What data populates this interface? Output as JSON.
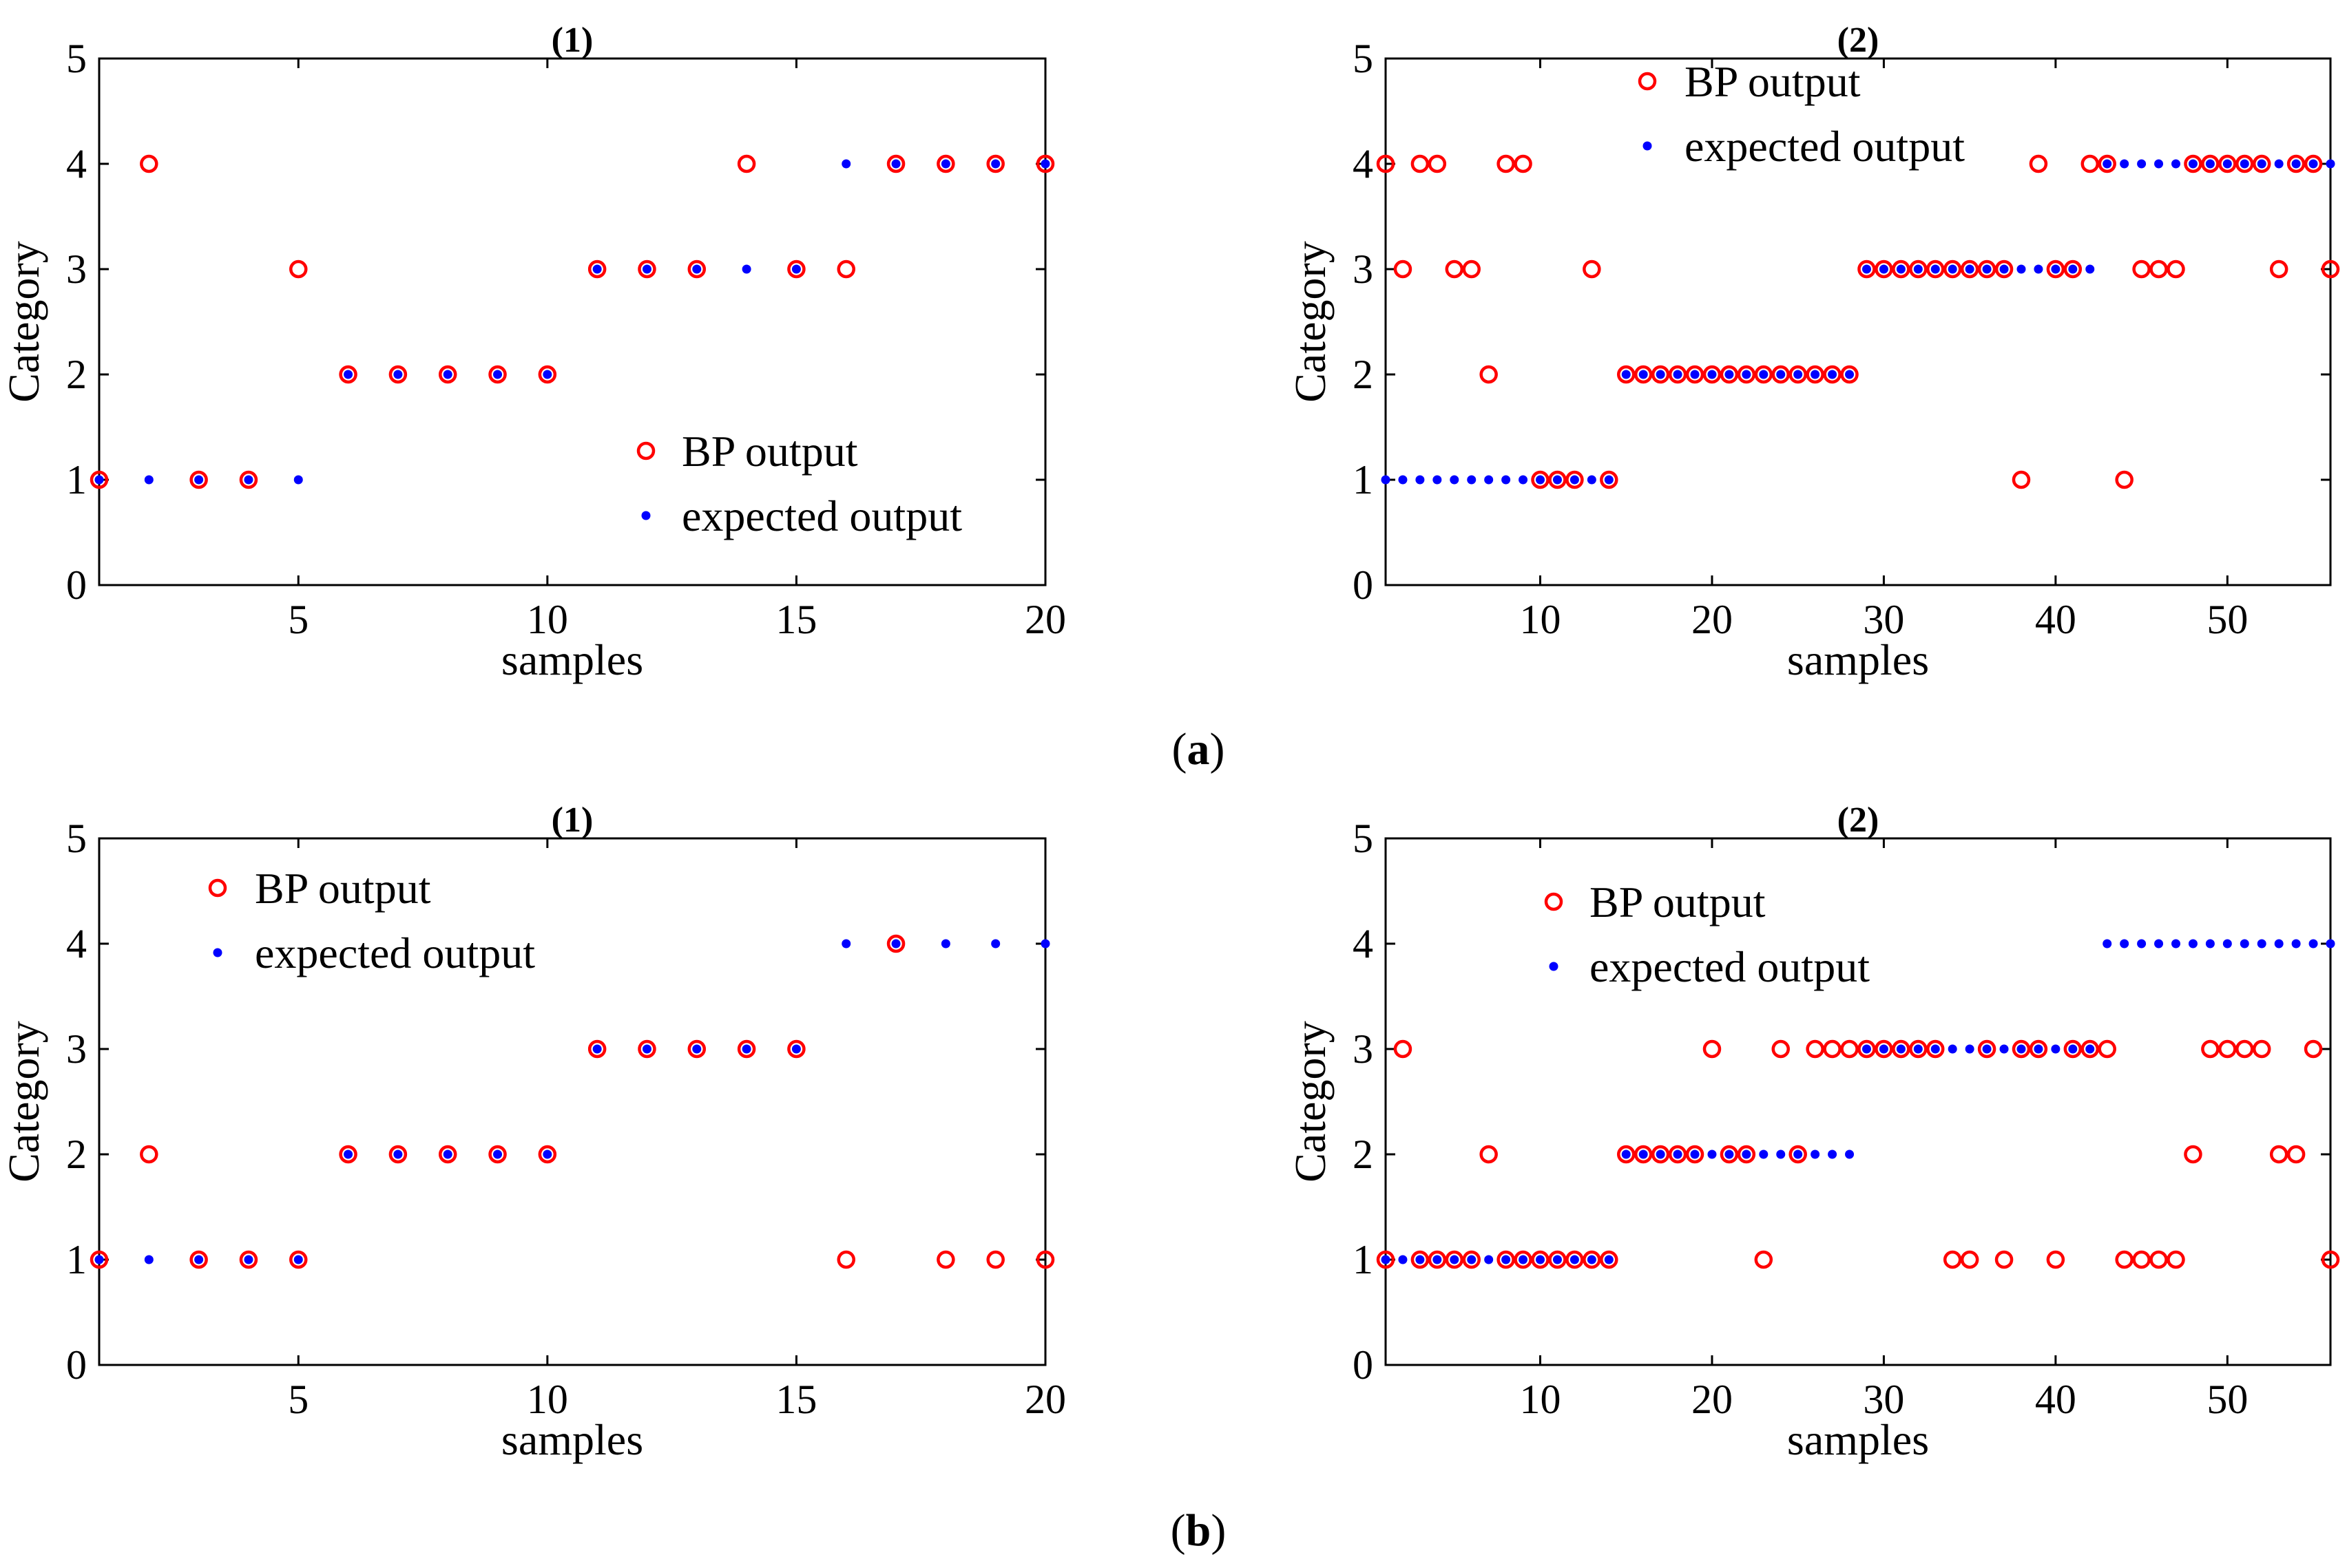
{
  "legend_bp": "BP output",
  "legend_expected": "expected output",
  "colors": {
    "bp": "#ff0000",
    "expected": "#0000ff",
    "axis": "#000000"
  },
  "captions": [
    {
      "open": "(",
      "letter": "a",
      "close": ")"
    },
    {
      "open": "(",
      "letter": "b",
      "close": ")"
    }
  ],
  "chart_data": [
    {
      "type": "scatter",
      "title": "(1)",
      "group": "a",
      "xlabel": "samples",
      "ylabel": "Category",
      "xlim": [
        1,
        20
      ],
      "ylim": [
        0,
        5
      ],
      "xticks": [
        5,
        10,
        15,
        20
      ],
      "yticks": [
        0,
        1,
        2,
        3,
        4,
        5
      ],
      "legend_position": "bottom-right",
      "series": [
        {
          "name": "BP output",
          "marker": "circle",
          "x": [
            1,
            2,
            3,
            4,
            5,
            6,
            7,
            8,
            9,
            10,
            11,
            12,
            13,
            14,
            15,
            16,
            17,
            18,
            19,
            20
          ],
          "y": [
            1,
            4,
            1,
            1,
            3,
            2,
            2,
            2,
            2,
            2,
            3,
            3,
            3,
            4,
            3,
            3,
            4,
            4,
            4,
            4
          ]
        },
        {
          "name": "expected output",
          "marker": "dot",
          "x": [
            1,
            2,
            3,
            4,
            5,
            6,
            7,
            8,
            9,
            10,
            11,
            12,
            13,
            14,
            15,
            16,
            17,
            18,
            19,
            20
          ],
          "y": [
            1,
            1,
            1,
            1,
            1,
            2,
            2,
            2,
            2,
            2,
            3,
            3,
            3,
            3,
            3,
            4,
            4,
            4,
            4,
            4
          ]
        }
      ]
    },
    {
      "type": "scatter",
      "title": "(2)",
      "group": "a",
      "xlabel": "samples",
      "ylabel": "Category",
      "xlim": [
        1,
        56
      ],
      "ylim": [
        0,
        5
      ],
      "xticks": [
        10,
        20,
        30,
        40,
        50
      ],
      "yticks": [
        0,
        1,
        2,
        3,
        4,
        5
      ],
      "legend_position": "top",
      "series": [
        {
          "name": "BP output",
          "marker": "circle",
          "x": [
            1,
            2,
            3,
            4,
            5,
            6,
            7,
            8,
            9,
            10,
            11,
            12,
            13,
            14,
            15,
            16,
            17,
            18,
            19,
            20,
            21,
            22,
            23,
            24,
            25,
            26,
            27,
            28,
            29,
            30,
            31,
            32,
            33,
            34,
            35,
            36,
            37,
            38,
            39,
            40,
            41,
            42,
            43,
            44,
            45,
            46,
            47,
            48,
            49,
            50,
            51,
            52,
            53,
            54,
            55,
            56
          ],
          "y": [
            4,
            3,
            4,
            4,
            3,
            3,
            2,
            4,
            4,
            1,
            1,
            1,
            3,
            1,
            2,
            2,
            2,
            2,
            2,
            2,
            2,
            2,
            2,
            2,
            2,
            2,
            2,
            2,
            3,
            3,
            3,
            3,
            3,
            3,
            3,
            3,
            3,
            1,
            4,
            3,
            3,
            4,
            4,
            1,
            3,
            3,
            3,
            4,
            4,
            4,
            4,
            4,
            3,
            4,
            4,
            3
          ]
        },
        {
          "name": "expected output",
          "marker": "dot",
          "x": [
            1,
            2,
            3,
            4,
            5,
            6,
            7,
            8,
            9,
            10,
            11,
            12,
            13,
            14,
            15,
            16,
            17,
            18,
            19,
            20,
            21,
            22,
            23,
            24,
            25,
            26,
            27,
            28,
            29,
            30,
            31,
            32,
            33,
            34,
            35,
            36,
            37,
            38,
            39,
            40,
            41,
            42,
            43,
            44,
            45,
            46,
            47,
            48,
            49,
            50,
            51,
            52,
            53,
            54,
            55,
            56
          ],
          "y": [
            1,
            1,
            1,
            1,
            1,
            1,
            1,
            1,
            1,
            1,
            1,
            1,
            1,
            1,
            2,
            2,
            2,
            2,
            2,
            2,
            2,
            2,
            2,
            2,
            2,
            2,
            2,
            2,
            3,
            3,
            3,
            3,
            3,
            3,
            3,
            3,
            3,
            3,
            3,
            3,
            3,
            3,
            4,
            4,
            4,
            4,
            4,
            4,
            4,
            4,
            4,
            4,
            4,
            4,
            4,
            4
          ]
        }
      ]
    },
    {
      "type": "scatter",
      "title": "(1)",
      "group": "b",
      "xlabel": "samples",
      "ylabel": "Category",
      "xlim": [
        1,
        20
      ],
      "ylim": [
        0,
        5
      ],
      "xticks": [
        5,
        10,
        15,
        20
      ],
      "yticks": [
        0,
        1,
        2,
        3,
        4,
        5
      ],
      "legend_position": "top-left",
      "series": [
        {
          "name": "BP output",
          "marker": "circle",
          "x": [
            1,
            2,
            3,
            4,
            5,
            6,
            7,
            8,
            9,
            10,
            11,
            12,
            13,
            14,
            15,
            16,
            17,
            18,
            19,
            20
          ],
          "y": [
            1,
            2,
            1,
            1,
            1,
            2,
            2,
            2,
            2,
            2,
            3,
            3,
            3,
            3,
            3,
            1,
            4,
            1,
            1,
            1
          ]
        },
        {
          "name": "expected output",
          "marker": "dot",
          "x": [
            1,
            2,
            3,
            4,
            5,
            6,
            7,
            8,
            9,
            10,
            11,
            12,
            13,
            14,
            15,
            16,
            17,
            18,
            19,
            20
          ],
          "y": [
            1,
            1,
            1,
            1,
            1,
            2,
            2,
            2,
            2,
            2,
            3,
            3,
            3,
            3,
            3,
            4,
            4,
            4,
            4,
            4
          ]
        }
      ]
    },
    {
      "type": "scatter",
      "title": "(2)",
      "group": "b",
      "xlabel": "samples",
      "ylabel": "Category",
      "xlim": [
        1,
        56
      ],
      "ylim": [
        0,
        5
      ],
      "xticks": [
        10,
        20,
        30,
        40,
        50
      ],
      "yticks": [
        0,
        1,
        2,
        3,
        4,
        5
      ],
      "legend_position": "top",
      "series": [
        {
          "name": "BP output",
          "marker": "circle",
          "x": [
            1,
            2,
            3,
            4,
            5,
            6,
            7,
            8,
            9,
            10,
            11,
            12,
            13,
            14,
            15,
            16,
            17,
            18,
            19,
            20,
            21,
            22,
            23,
            24,
            25,
            26,
            27,
            28,
            29,
            30,
            31,
            32,
            33,
            34,
            35,
            36,
            37,
            38,
            39,
            40,
            41,
            42,
            43,
            44,
            45,
            46,
            47,
            48,
            49,
            50,
            51,
            52,
            53,
            54,
            55,
            56
          ],
          "y": [
            1,
            3,
            1,
            1,
            1,
            1,
            2,
            1,
            1,
            1,
            1,
            1,
            1,
            1,
            2,
            2,
            2,
            2,
            2,
            3,
            2,
            2,
            1,
            3,
            2,
            3,
            3,
            3,
            3,
            3,
            3,
            3,
            3,
            1,
            1,
            3,
            1,
            3,
            3,
            1,
            3,
            3,
            3,
            1,
            1,
            1,
            1,
            2,
            3,
            3,
            3,
            3,
            2,
            2,
            3,
            1
          ]
        },
        {
          "name": "expected output",
          "marker": "dot",
          "x": [
            1,
            2,
            3,
            4,
            5,
            6,
            7,
            8,
            9,
            10,
            11,
            12,
            13,
            14,
            15,
            16,
            17,
            18,
            19,
            20,
            21,
            22,
            23,
            24,
            25,
            26,
            27,
            28,
            29,
            30,
            31,
            32,
            33,
            34,
            35,
            36,
            37,
            38,
            39,
            40,
            41,
            42,
            43,
            44,
            45,
            46,
            47,
            48,
            49,
            50,
            51,
            52,
            53,
            54,
            55,
            56
          ],
          "y": [
            1,
            1,
            1,
            1,
            1,
            1,
            1,
            1,
            1,
            1,
            1,
            1,
            1,
            1,
            2,
            2,
            2,
            2,
            2,
            2,
            2,
            2,
            2,
            2,
            2,
            2,
            2,
            2,
            3,
            3,
            3,
            3,
            3,
            3,
            3,
            3,
            3,
            3,
            3,
            3,
            3,
            3,
            4,
            4,
            4,
            4,
            4,
            4,
            4,
            4,
            4,
            4,
            4,
            4,
            4,
            4
          ]
        }
      ]
    }
  ]
}
